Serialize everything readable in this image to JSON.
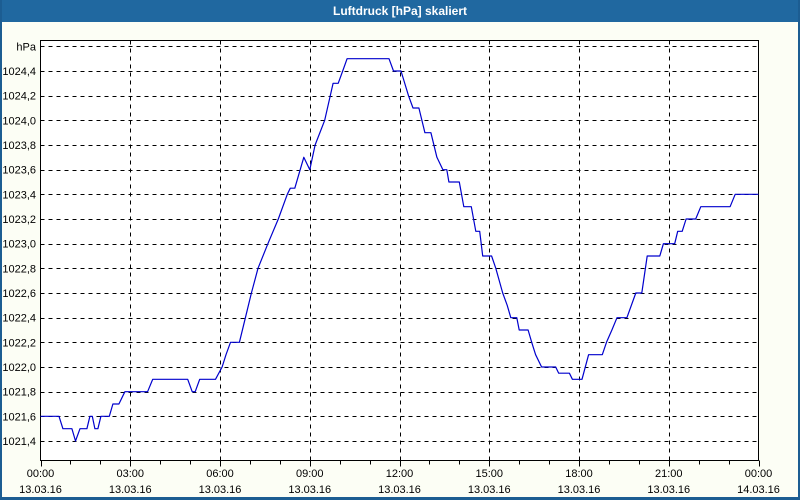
{
  "window": {
    "title": "Luftdruck [hPa] skaliert"
  },
  "colors": {
    "titlebar": "#2068a0",
    "frame": "#1c5d92",
    "background": "#fcfef5",
    "plot_background": "#ffffff",
    "line": "#0000cd",
    "grid": "#000000",
    "text": "#000000"
  },
  "chart_data": {
    "type": "line",
    "title": "Luftdruck [hPa] skaliert",
    "y_unit_label": "hPa",
    "y_unit_level": 1024.6,
    "ylim": [
      1021.24,
      1024.65
    ],
    "xlim_hours": [
      0,
      24
    ],
    "grid": "dashed",
    "legend": "none",
    "y_ticks": [
      {
        "v": 1024.4,
        "label": "1024,4"
      },
      {
        "v": 1024.2,
        "label": "1024,2"
      },
      {
        "v": 1024.0,
        "label": "1024,0"
      },
      {
        "v": 1023.8,
        "label": "1023,8"
      },
      {
        "v": 1023.6,
        "label": "1023,6"
      },
      {
        "v": 1023.4,
        "label": "1023,4"
      },
      {
        "v": 1023.2,
        "label": "1023,2"
      },
      {
        "v": 1023.0,
        "label": "1023,0"
      },
      {
        "v": 1022.8,
        "label": "1022,8"
      },
      {
        "v": 1022.6,
        "label": "1022,6"
      },
      {
        "v": 1022.4,
        "label": "1022,4"
      },
      {
        "v": 1022.2,
        "label": "1022,2"
      },
      {
        "v": 1022.0,
        "label": "1022,0"
      },
      {
        "v": 1021.8,
        "label": "1021,8"
      },
      {
        "v": 1021.6,
        "label": "1021,6"
      },
      {
        "v": 1021.4,
        "label": "1021,4"
      }
    ],
    "x_ticks": [
      {
        "hour": 0,
        "time": "00:00",
        "date": "13.03.16"
      },
      {
        "hour": 3,
        "time": "03:00",
        "date": "13.03.16"
      },
      {
        "hour": 6,
        "time": "06:00",
        "date": "13.03.16"
      },
      {
        "hour": 9,
        "time": "09:00",
        "date": "13.03.16"
      },
      {
        "hour": 12,
        "time": "12:00",
        "date": "13.03.16"
      },
      {
        "hour": 15,
        "time": "15:00",
        "date": "13.03.16"
      },
      {
        "hour": 18,
        "time": "18:00",
        "date": "13.03.16"
      },
      {
        "hour": 21,
        "time": "21:00",
        "date": "13.03.16"
      },
      {
        "hour": 24,
        "time": "00:00",
        "date": "14.03.16"
      }
    ],
    "series": [
      {
        "name": "Luftdruck",
        "points": [
          [
            0,
            1021.6
          ],
          [
            0.62,
            1021.6
          ],
          [
            0.75,
            1021.5
          ],
          [
            1.05,
            1021.5
          ],
          [
            1.17,
            1021.4
          ],
          [
            1.32,
            1021.5
          ],
          [
            1.55,
            1021.5
          ],
          [
            1.65,
            1021.6
          ],
          [
            1.73,
            1021.6
          ],
          [
            1.82,
            1021.5
          ],
          [
            1.92,
            1021.5
          ],
          [
            2.02,
            1021.6
          ],
          [
            2.3,
            1021.6
          ],
          [
            2.42,
            1021.7
          ],
          [
            2.62,
            1021.7
          ],
          [
            2.82,
            1021.8
          ],
          [
            3.58,
            1021.8
          ],
          [
            3.75,
            1021.9
          ],
          [
            4.92,
            1021.9
          ],
          [
            5.07,
            1021.8
          ],
          [
            5.17,
            1021.8
          ],
          [
            5.32,
            1021.9
          ],
          [
            5.85,
            1021.9
          ],
          [
            6.07,
            1022.0
          ],
          [
            6.2,
            1022.1
          ],
          [
            6.35,
            1022.2
          ],
          [
            6.65,
            1022.2
          ],
          [
            6.85,
            1022.4
          ],
          [
            7.05,
            1022.6
          ],
          [
            7.27,
            1022.8
          ],
          [
            7.6,
            1023.0
          ],
          [
            7.95,
            1023.2
          ],
          [
            8.25,
            1023.4
          ],
          [
            8.35,
            1023.45
          ],
          [
            8.5,
            1023.45
          ],
          [
            8.8,
            1023.7
          ],
          [
            9.0,
            1023.6
          ],
          [
            9.18,
            1023.8
          ],
          [
            9.5,
            1024.0
          ],
          [
            9.78,
            1024.3
          ],
          [
            9.95,
            1024.3
          ],
          [
            10.1,
            1024.4
          ],
          [
            10.25,
            1024.5
          ],
          [
            11.65,
            1024.5
          ],
          [
            11.8,
            1024.4
          ],
          [
            12.05,
            1024.4
          ],
          [
            12.3,
            1024.2
          ],
          [
            12.45,
            1024.1
          ],
          [
            12.65,
            1024.1
          ],
          [
            12.85,
            1023.9
          ],
          [
            13.05,
            1023.9
          ],
          [
            13.25,
            1023.7
          ],
          [
            13.45,
            1023.6
          ],
          [
            13.58,
            1023.6
          ],
          [
            13.65,
            1023.5
          ],
          [
            14.0,
            1023.5
          ],
          [
            14.15,
            1023.3
          ],
          [
            14.4,
            1023.3
          ],
          [
            14.55,
            1023.1
          ],
          [
            14.68,
            1023.1
          ],
          [
            14.78,
            1022.9
          ],
          [
            15.08,
            1022.9
          ],
          [
            15.22,
            1022.8
          ],
          [
            15.45,
            1022.6
          ],
          [
            15.6,
            1022.5
          ],
          [
            15.72,
            1022.4
          ],
          [
            15.92,
            1022.4
          ],
          [
            16.0,
            1022.3
          ],
          [
            16.3,
            1022.3
          ],
          [
            16.42,
            1022.2
          ],
          [
            16.55,
            1022.1
          ],
          [
            16.75,
            1022.0
          ],
          [
            17.22,
            1022.0
          ],
          [
            17.32,
            1021.95
          ],
          [
            17.68,
            1021.95
          ],
          [
            17.78,
            1021.9
          ],
          [
            18.1,
            1021.9
          ],
          [
            18.32,
            1022.1
          ],
          [
            18.78,
            1022.1
          ],
          [
            18.92,
            1022.2
          ],
          [
            19.1,
            1022.3
          ],
          [
            19.27,
            1022.4
          ],
          [
            19.6,
            1022.4
          ],
          [
            19.9,
            1022.6
          ],
          [
            20.1,
            1022.6
          ],
          [
            20.28,
            1022.9
          ],
          [
            20.7,
            1022.9
          ],
          [
            20.82,
            1023.0
          ],
          [
            21.2,
            1023.0
          ],
          [
            21.3,
            1023.1
          ],
          [
            21.45,
            1023.1
          ],
          [
            21.58,
            1023.2
          ],
          [
            21.9,
            1023.2
          ],
          [
            22.07,
            1023.3
          ],
          [
            23.05,
            1023.3
          ],
          [
            23.22,
            1023.4
          ],
          [
            24,
            1023.4
          ]
        ]
      }
    ]
  }
}
